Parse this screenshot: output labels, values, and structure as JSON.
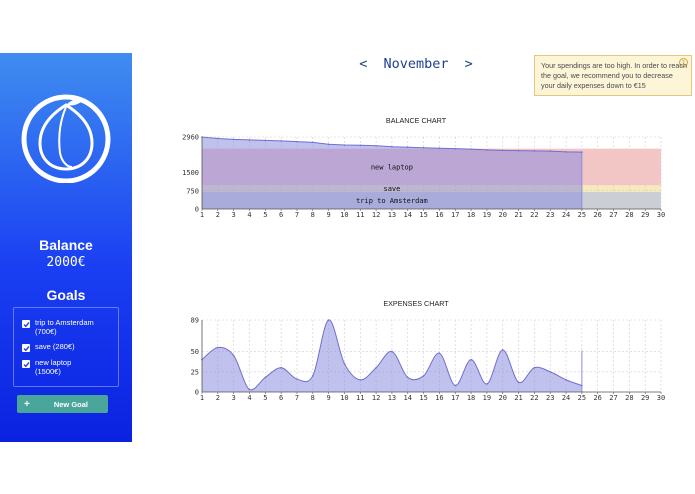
{
  "sidebar": {
    "balance_title": "Balance",
    "balance_value": "2000€",
    "goals_title": "Goals",
    "goals": [
      {
        "line1": "trip to Amsterdam",
        "line2": "(700€)",
        "checked": true
      },
      {
        "line1": "save (280€)",
        "line2": "",
        "checked": true
      },
      {
        "line1": "new laptop",
        "line2": "(1500€)",
        "checked": true
      }
    ],
    "new_goal_label": "New Goal",
    "new_goal_icon": "+"
  },
  "header": {
    "prev": "<",
    "month": "November",
    "next": ">"
  },
  "alert": {
    "text": "Your spendings are too high. In order to reach the goal, we recommend you to decrease your daily expenses down to €15"
  },
  "chart_data": [
    {
      "type": "area",
      "title": "BALANCE CHART",
      "x": [
        1,
        2,
        3,
        4,
        5,
        6,
        7,
        8,
        9,
        10,
        11,
        12,
        13,
        14,
        15,
        16,
        17,
        18,
        19,
        20,
        21,
        22,
        23,
        24,
        25
      ],
      "values": [
        2960,
        2900,
        2860,
        2840,
        2820,
        2800,
        2770,
        2740,
        2660,
        2630,
        2620,
        2600,
        2560,
        2540,
        2520,
        2500,
        2480,
        2460,
        2430,
        2410,
        2400,
        2390,
        2380,
        2350,
        2340
      ],
      "xlim": [
        1,
        30
      ],
      "ylim": [
        0,
        2960
      ],
      "yticks": [
        0,
        750,
        1500,
        2960
      ],
      "goal_bands": [
        {
          "label": "trip to Amsterdam",
          "from": 0,
          "to": 700,
          "color": "#b9bfc7"
        },
        {
          "label": "save",
          "from": 700,
          "to": 980,
          "color": "#f3e1a6"
        },
        {
          "label": "new laptop",
          "from": 980,
          "to": 2480,
          "color": "#efb2b2"
        }
      ],
      "series_color": "#8e8ee0"
    },
    {
      "type": "area",
      "title": "EXPENSES CHART",
      "x": [
        1,
        2,
        3,
        4,
        5,
        6,
        7,
        8,
        9,
        10,
        11,
        12,
        13,
        14,
        15,
        16,
        17,
        18,
        19,
        20,
        21,
        22,
        23,
        24,
        25
      ],
      "values": [
        40,
        55,
        45,
        3,
        18,
        30,
        16,
        20,
        89,
        35,
        15,
        30,
        50,
        18,
        20,
        48,
        8,
        40,
        10,
        52,
        12,
        30,
        25,
        15,
        8
      ],
      "xlim": [
        1,
        30
      ],
      "ylim": [
        0,
        89
      ],
      "yticks": [
        0,
        25,
        50,
        89
      ],
      "series_color": "#8e8ee0"
    }
  ]
}
